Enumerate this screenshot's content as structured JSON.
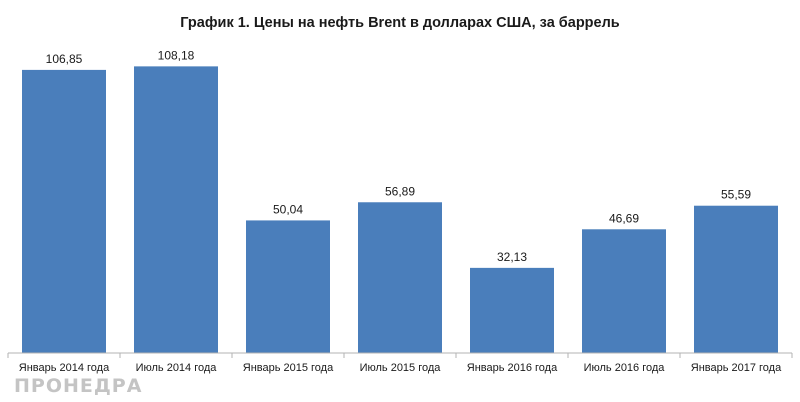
{
  "chart_data": {
    "type": "bar",
    "title": "График 1. Цены на нефть Brent в долларах США, за баррель",
    "categories": [
      "Январь 2014 года",
      "Июль 2014 года",
      "Январь 2015 года",
      "Июль 2015 года",
      "Январь 2016 года",
      "Июль 2016 года",
      "Январь 2017 года"
    ],
    "values": [
      106.85,
      108.18,
      50.04,
      56.89,
      32.13,
      46.69,
      55.59
    ],
    "value_labels": [
      "106,85",
      "108,18",
      "50,04",
      "56,89",
      "32,13",
      "46,69",
      "55,59"
    ],
    "xlabel": "",
    "ylabel": "",
    "ylim": [
      0,
      117
    ],
    "grid": false,
    "bar_color": "#4a7ebb"
  },
  "watermark": "ПРОНЕДРА"
}
